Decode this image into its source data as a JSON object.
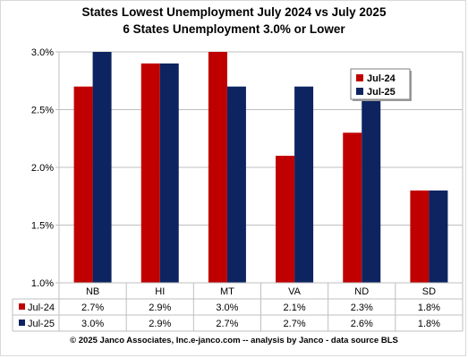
{
  "chart_data": {
    "type": "bar",
    "title": "States Lowest Unemployment July 2024 vs July 2025",
    "subtitle": "6 States  Unemployment 3.0% or Lower",
    "categories": [
      "NB",
      "HI",
      "MT",
      "VA",
      "ND",
      "SD"
    ],
    "series": [
      {
        "name": "Jul-24",
        "color": "#c00000",
        "values": [
          2.7,
          2.9,
          3.0,
          2.1,
          2.3,
          1.8
        ],
        "table_labels": [
          "2.7%",
          "2.9%",
          "3.0%",
          "2.1%",
          "2.3%",
          "1.8%"
        ]
      },
      {
        "name": "Jul-25",
        "color": "#0d2461",
        "values": [
          3.0,
          2.9,
          2.7,
          2.7,
          2.6,
          1.8
        ],
        "table_labels": [
          "3.0%",
          "2.9%",
          "2.7%",
          "2.7%",
          "2.6%",
          "1.8%"
        ]
      }
    ],
    "ylim": [
      1.0,
      3.0
    ],
    "yticks": [
      1.0,
      1.5,
      2.0,
      2.5,
      3.0
    ],
    "ytick_labels": [
      "1.0%",
      "1.5%",
      "2.0%",
      "2.5%",
      "3.0%"
    ],
    "grid": true,
    "legend_position": "top-right",
    "data_table": true
  },
  "footer": "© 2025 Janco Associates, Inc.e-janco.com -- analysis by Janco - data source BLS"
}
